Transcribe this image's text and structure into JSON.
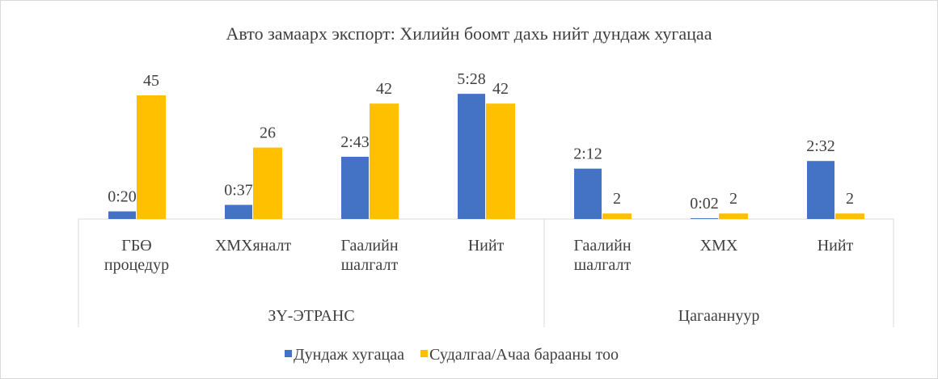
{
  "chart_data": {
    "type": "bar",
    "title": "Авто замаарх экспорт: Хилийн боомт дахь нийт дундаж хугацаа",
    "categories": [
      "ГБӨ процедур",
      "ХМХяналт",
      "Гаалийн шалгалт",
      "Нийт",
      "Гаалийн шалгалт",
      "ХМХ",
      "Нийт"
    ],
    "groups": [
      {
        "name": "ЗҮ-ЭТРАНС",
        "count": 4
      },
      {
        "name": "Цагааннуур",
        "count": 3
      }
    ],
    "series": [
      {
        "name": "Дундаж хугацаа",
        "color": "#4472c4",
        "axis": "y2",
        "values": [
          20,
          37,
          163,
          328,
          132,
          2,
          152
        ],
        "value_labels": [
          "0:20",
          "0:37",
          "2:43",
          "5:28",
          "2:12",
          "0:02",
          "2:32"
        ]
      },
      {
        "name": "Судалгаа/Ачаа барааны тоо",
        "color": "#ffc000",
        "values": [
          45,
          26,
          42,
          42,
          2,
          2,
          2
        ]
      }
    ],
    "ylim": [
      0,
      50
    ],
    "y2lim": [
      0,
      360
    ],
    "legend": "bottom"
  }
}
